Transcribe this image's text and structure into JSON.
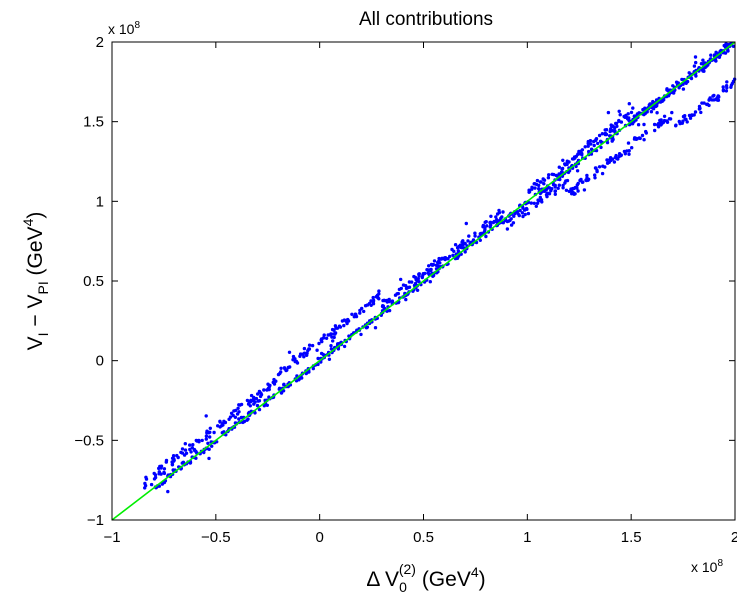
{
  "chart_data": {
    "type": "scatter",
    "title": "All contributions",
    "xlabel": {
      "base": "Δ V",
      "sub": "0",
      "sup": "(2)",
      "unit_pre": " (GeV",
      "unit_sup": "4",
      "unit_post": ")"
    },
    "ylabel": {
      "base": "V",
      "sub": "I",
      "mid": " − V",
      "sub2": "PI",
      "unit_pre": " (GeV",
      "unit_sup": "4",
      "unit_post": ")"
    },
    "x_multiplier": "x 10",
    "x_multiplier_exp": "8",
    "y_multiplier": "x 10",
    "y_multiplier_exp": "8",
    "xlim": [
      -1,
      2
    ],
    "ylim": [
      -1,
      2
    ],
    "xticks": [
      -1,
      -0.5,
      0,
      0.5,
      1,
      1.5,
      2
    ],
    "xtick_labels": [
      "−1",
      "−0.5",
      "0",
      "0.5",
      "1",
      "1.5",
      "2"
    ],
    "yticks": [
      -1,
      -0.5,
      0,
      0.5,
      1,
      1.5,
      2
    ],
    "ytick_labels": [
      "−1",
      "−0.5",
      "0",
      "0.5",
      "1",
      "1.5",
      "2"
    ],
    "grid": false,
    "reference_line": {
      "x": [
        -1,
        2
      ],
      "y": [
        -1,
        2
      ],
      "color": "#00ee00"
    },
    "scatter_color": "#0000ff",
    "scatter_clusters": [
      {
        "x_range": [
          -0.85,
          -0.2
        ],
        "y_offset": 0.075,
        "spread": 0.018
      },
      {
        "x_range": [
          -0.2,
          0.3
        ],
        "y_offset": 0.12,
        "spread": 0.015
      },
      {
        "x_range": [
          0.3,
          0.9
        ],
        "y_offset": 0.045,
        "spread": 0.015
      },
      {
        "x_range": [
          0.9,
          1.2
        ],
        "y_offset": -0.05,
        "spread": 0.02
      },
      {
        "x_range": [
          1.0,
          1.5
        ],
        "y_offset": 0.05,
        "spread": 0.015
      },
      {
        "x_range": [
          1.2,
          1.7
        ],
        "y_offset": -0.15,
        "spread": 0.02
      },
      {
        "x_range": [
          1.7,
          2.0
        ],
        "y_offset": -0.25,
        "spread": 0.015
      },
      {
        "x_range": [
          1.5,
          2.0
        ],
        "y_offset": 0.0,
        "spread": 0.015
      },
      {
        "x_range": [
          -0.8,
          2.0
        ],
        "y_offset": 0.0,
        "spread": 0.012
      }
    ]
  }
}
